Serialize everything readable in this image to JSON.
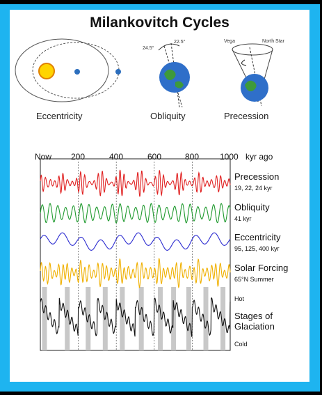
{
  "title": "Milankovitch Cycles",
  "diagrams": {
    "eccentricity_label": "Eccentricity",
    "obliquity_label": "Obliquity",
    "precession_label": "Precession",
    "obliquity_angle_a": "24.5°",
    "obliquity_angle_b": "22.5°",
    "precession_star_a": "Vega",
    "precession_star_b": "North Star"
  },
  "colors": {
    "precession": "#e02020",
    "obliquity": "#1f9a2e",
    "eccentricity": "#2b2bd0",
    "solar_forcing": "#f0b000",
    "glaciation": "#111111",
    "glaciation_band": "#c8c8c8"
  },
  "chart_data": {
    "type": "line",
    "x_axis": {
      "ticks": [
        "Now",
        "200",
        "400",
        "600",
        "800",
        "1000"
      ],
      "unit": "kyr ago",
      "range": [
        0,
        1000
      ]
    },
    "series": [
      {
        "name": "Precession",
        "period_text": "19, 22, 24 kyr",
        "periods_kyr": [
          19,
          22,
          24
        ]
      },
      {
        "name": "Obliquity",
        "period_text": "41 kyr",
        "periods_kyr": [
          41
        ]
      },
      {
        "name": "Eccentricity",
        "period_text": "95, 125, 400 kyr",
        "periods_kyr": [
          95,
          125,
          400
        ]
      },
      {
        "name": "Solar Forcing",
        "period_text": "65°N Summer"
      },
      {
        "name": "Stages of Glaciation",
        "top_text": "Hot",
        "bottom_text": "Cold"
      }
    ],
    "glacial_stages_kyr": [
      20,
      140,
      250,
      340,
      430,
      530,
      630,
      700,
      780,
      870,
      960
    ]
  }
}
